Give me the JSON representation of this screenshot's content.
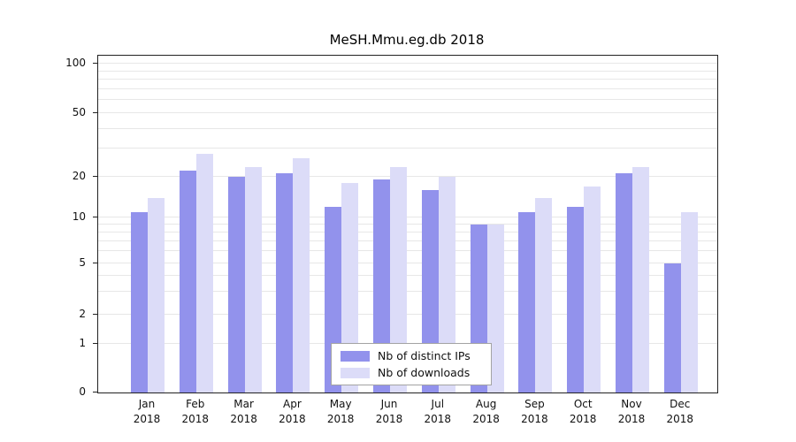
{
  "chart_data": {
    "type": "bar",
    "title": "MeSH.Mmu.eg.db 2018",
    "categories": [
      "Jan",
      "Feb",
      "Mar",
      "Apr",
      "May",
      "Jun",
      "Jul",
      "Aug",
      "Sep",
      "Oct",
      "Nov",
      "Dec"
    ],
    "year": "2018",
    "series": [
      {
        "name": "Nb of distinct IPs",
        "color": "#9292ec",
        "values": [
          11,
          22,
          20,
          21,
          12,
          19,
          16,
          9,
          11,
          12,
          21,
          5
        ]
      },
      {
        "name": "Nb of downloads",
        "color": "#dcdcf8",
        "values": [
          14,
          28,
          23,
          26,
          18,
          23,
          20,
          9,
          14,
          17,
          23,
          11
        ]
      }
    ],
    "y_ticks": [
      0,
      1,
      2,
      5,
      10,
      20,
      50,
      100
    ],
    "grid_values": [
      1,
      2,
      3,
      4,
      5,
      6,
      7,
      8,
      9,
      10,
      20,
      30,
      40,
      50,
      60,
      70,
      80,
      90,
      100
    ],
    "ylim": [
      0,
      100
    ],
    "scale": "log-like",
    "xlabel": "",
    "ylabel": "",
    "legend_position": "bottom-center",
    "grid": "horizontal-minor-log"
  },
  "colors": {
    "grid": "#e7e7e7",
    "axis": "#222222",
    "legend_border": "#a3a3a3",
    "background": "#ffffff"
  }
}
